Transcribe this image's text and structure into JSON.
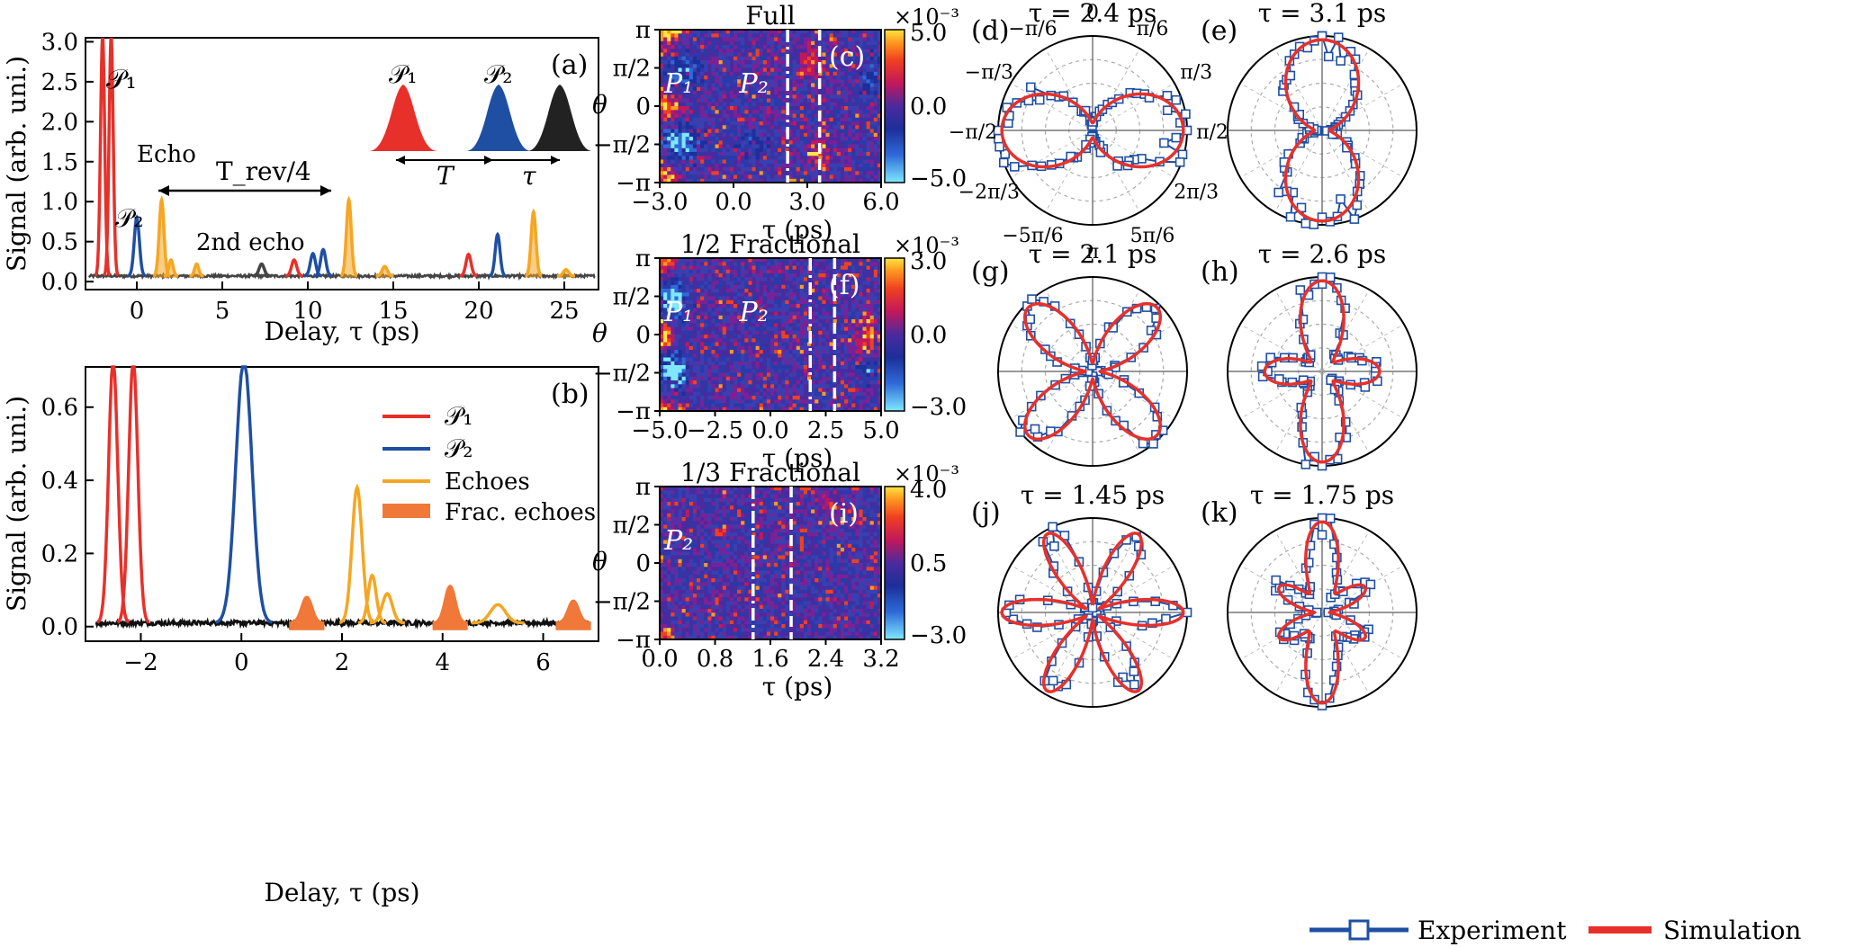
{
  "colors": {
    "p1": "#e8302a",
    "p2": "#1f4fa3",
    "echo": "#f5a623",
    "frac": "#f07838",
    "trace": "#444444",
    "exp": "#1f4fa3",
    "sim": "#e8302a"
  },
  "chart_data": [
    {
      "id": "a",
      "type": "line",
      "panel_label": "(a)",
      "xlabel": "Delay, τ (ps)",
      "ylabel": "Signal (arb. uni.)",
      "xlim": [
        -3,
        27
      ],
      "ylim": [
        -0.1,
        3.05
      ],
      "xticks": [
        0,
        5,
        10,
        15,
        20,
        25
      ],
      "yticks": [
        0.0,
        0.5,
        1.0,
        1.5,
        2.0,
        2.5,
        3.0
      ],
      "ytick_labels": [
        "0.0",
        "0.5",
        "1.0",
        "1.5",
        "2.0",
        "2.5",
        "3.0"
      ],
      "peaks": [
        {
          "center": -2.0,
          "height": 3.0,
          "width": 0.12,
          "series": "p1"
        },
        {
          "center": -1.5,
          "height": 3.0,
          "width": 0.12,
          "series": "p1"
        },
        {
          "center": 0.0,
          "height": 0.73,
          "width": 0.15,
          "series": "p2"
        },
        {
          "center": 1.45,
          "height": 0.95,
          "width": 0.14,
          "series": "echo"
        },
        {
          "center": 2.0,
          "height": 0.2,
          "width": 0.12,
          "series": "echo"
        },
        {
          "center": 3.5,
          "height": 0.15,
          "width": 0.12,
          "series": "echo"
        },
        {
          "center": 7.3,
          "height": 0.15,
          "width": 0.15,
          "series": "trace"
        },
        {
          "center": 9.2,
          "height": 0.2,
          "width": 0.15,
          "series": "p1"
        },
        {
          "center": 10.3,
          "height": 0.28,
          "width": 0.15,
          "series": "p2"
        },
        {
          "center": 10.9,
          "height": 0.33,
          "width": 0.15,
          "series": "p2"
        },
        {
          "center": 12.4,
          "height": 0.95,
          "width": 0.14,
          "series": "echo"
        },
        {
          "center": 14.5,
          "height": 0.12,
          "width": 0.15,
          "series": "echo"
        },
        {
          "center": 19.4,
          "height": 0.27,
          "width": 0.15,
          "series": "p1"
        },
        {
          "center": 21.1,
          "height": 0.52,
          "width": 0.14,
          "series": "p2"
        },
        {
          "center": 23.2,
          "height": 0.8,
          "width": 0.14,
          "series": "echo"
        },
        {
          "center": 25.1,
          "height": 0.08,
          "width": 0.15,
          "series": "echo"
        }
      ],
      "annotations": {
        "p1": "𝒫₁",
        "p2": "𝒫₂",
        "echo": "Echo",
        "echo2": "2nd echo",
        "trev": "T_rev/4",
        "T": "T",
        "tau": "τ"
      }
    },
    {
      "id": "b",
      "type": "line",
      "panel_label": "(b)",
      "xlabel": "Delay, τ (ps)",
      "ylabel": "Signal (arb. uni.)",
      "xlim": [
        -3.1,
        7.1
      ],
      "ylim": [
        -0.04,
        0.71
      ],
      "xticks": [
        -2,
        0,
        2,
        4,
        6
      ],
      "yticks": [
        0.0,
        0.2,
        0.4,
        0.6
      ],
      "ytick_labels": [
        "0.0",
        "0.2",
        "0.4",
        "0.6"
      ],
      "peaks": [
        {
          "center": -2.55,
          "height": 0.72,
          "width": 0.09,
          "series": "p1"
        },
        {
          "center": -2.15,
          "height": 0.72,
          "width": 0.09,
          "series": "p1"
        },
        {
          "center": 0.05,
          "height": 0.72,
          "width": 0.16,
          "series": "p2"
        },
        {
          "center": 1.3,
          "height": 0.07,
          "width": 0.1,
          "series": "frac"
        },
        {
          "center": 2.3,
          "height": 0.37,
          "width": 0.1,
          "series": "echo"
        },
        {
          "center": 2.6,
          "height": 0.13,
          "width": 0.08,
          "series": "echo"
        },
        {
          "center": 2.9,
          "height": 0.08,
          "width": 0.1,
          "series": "echo"
        },
        {
          "center": 4.15,
          "height": 0.1,
          "width": 0.1,
          "series": "frac"
        },
        {
          "center": 5.1,
          "height": 0.05,
          "width": 0.15,
          "series": "echo"
        },
        {
          "center": 6.6,
          "height": 0.06,
          "width": 0.1,
          "series": "frac"
        }
      ],
      "legend": [
        "𝒫₁",
        "𝒫₂",
        "Echoes",
        "Frac. echoes"
      ]
    },
    {
      "id": "c",
      "type": "heatmap",
      "panel_label": "(c)",
      "title": "Full",
      "xlabel": "τ (ps)",
      "ylabel": "θ",
      "xlim": [
        -3.0,
        6.0
      ],
      "xticks": [
        -3.0,
        0.0,
        3.0,
        6.0
      ],
      "xtick_labels": [
        "−3.0",
        "0.0",
        "3.0",
        "6.0"
      ],
      "yticks": [
        "π",
        "π/2",
        "0",
        "−π/2",
        "−π"
      ],
      "colorbar_ticks": [
        "5.0",
        "0.0",
        "−5.0"
      ],
      "colorbar_exponent": "×10⁻³",
      "vlines": [
        2.2,
        3.5
      ],
      "labels": [
        "P₁",
        "P₂"
      ]
    },
    {
      "id": "f",
      "type": "heatmap",
      "panel_label": "(f)",
      "title": "1/2 Fractional",
      "xlabel": "τ (ps)",
      "ylabel": "θ",
      "xlim": [
        -5.0,
        5.0
      ],
      "xticks": [
        -5.0,
        -2.5,
        0.0,
        2.5,
        5.0
      ],
      "xtick_labels": [
        "−5.0",
        "−2.5",
        "0.0",
        "2.5",
        "5.0"
      ],
      "yticks": [
        "π",
        "π/2",
        "0",
        "−π/2",
        "−π"
      ],
      "colorbar_ticks": [
        "3.0",
        "0.0",
        "−3.0"
      ],
      "colorbar_exponent": "×10⁻³",
      "vlines": [
        1.8,
        2.9
      ],
      "labels": [
        "P₁",
        "P₂"
      ]
    },
    {
      "id": "i",
      "type": "heatmap",
      "panel_label": "(i)",
      "title": "1/3 Fractional",
      "xlabel": "τ (ps)",
      "ylabel": "θ",
      "xlim": [
        0.0,
        3.2
      ],
      "xticks": [
        0.0,
        0.8,
        1.6,
        2.4,
        3.2
      ],
      "xtick_labels": [
        "0.0",
        "0.8",
        "1.6",
        "2.4",
        "3.2"
      ],
      "yticks": [
        "π",
        "π/2",
        "0",
        "−π/2",
        "−π"
      ],
      "colorbar_ticks": [
        "4.0",
        "0.5",
        "−3.0"
      ],
      "colorbar_exponent": "×10⁻³",
      "vlines": [
        1.35,
        1.9
      ],
      "labels": [
        "P₂"
      ]
    },
    {
      "type": "scatter",
      "polar": true,
      "angle_labels": [
        "0",
        "π/6",
        "π/3",
        "π/2",
        "2π/3",
        "5π/6",
        "π",
        "−5π/6",
        "−2π/3",
        "−π/2",
        "−π/3",
        "−π/6"
      ],
      "legend": [
        "Experiment",
        "Simulation"
      ],
      "panels": [
        {
          "id": "d",
          "panel_label": "(d)",
          "title": "τ = 2.4 ps",
          "n": 1,
          "orient": "h"
        },
        {
          "id": "e",
          "panel_label": "(e)",
          "title": "τ = 3.1 ps",
          "n": 1,
          "orient": "v"
        },
        {
          "id": "g",
          "panel_label": "(g)",
          "title": "τ = 2.1 ps",
          "n": 2,
          "orient": "x"
        },
        {
          "id": "h",
          "panel_label": "(h)",
          "title": "τ = 2.6 ps",
          "n": 2,
          "orient": "+"
        },
        {
          "id": "j",
          "panel_label": "(j)",
          "title": "τ = 1.45 ps",
          "n": 3,
          "orient": "x"
        },
        {
          "id": "k",
          "panel_label": "(k)",
          "title": "τ = 1.75 ps",
          "n": 3,
          "orient": "+"
        }
      ]
    }
  ]
}
